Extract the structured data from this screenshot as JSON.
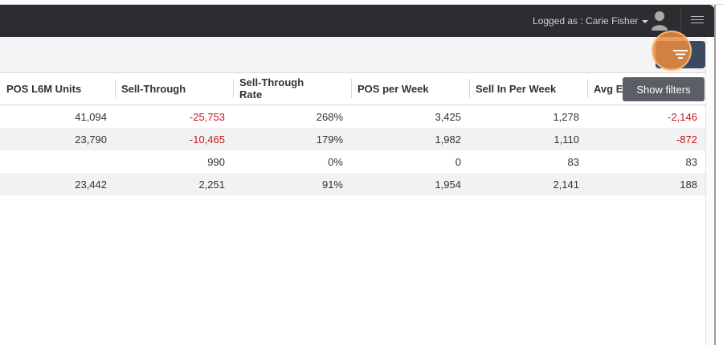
{
  "header": {
    "logged_as": "Logged as : Carie Fisher",
    "user_icon": "user-icon",
    "menu_icon": "hamburger-icon"
  },
  "toolbar": {
    "filter_icon": "filter-icon",
    "tooltip": "Show filters"
  },
  "table": {
    "columns": [
      "POS L6M Units",
      "Sell-Through",
      "Sell-Through Rate",
      "POS per Week",
      "Sell In Per Week",
      "Avg E"
    ],
    "rows": [
      {
        "pos_l6m": "41,094",
        "sell_through": "-25,753",
        "rate": "268%",
        "pos_week": "3,425",
        "sell_in_week": "1,278",
        "avg": "-2,146"
      },
      {
        "pos_l6m": "23,790",
        "sell_through": "-10,465",
        "rate": "179%",
        "pos_week": "1,982",
        "sell_in_week": "1,110",
        "avg": "-872"
      },
      {
        "pos_l6m": "",
        "sell_through": "990",
        "rate": "0%",
        "pos_week": "0",
        "sell_in_week": "83",
        "avg": "83"
      },
      {
        "pos_l6m": "23,442",
        "sell_through": "2,251",
        "rate": "91%",
        "pos_week": "1,954",
        "sell_in_week": "2,141",
        "avg": "188"
      }
    ]
  },
  "colors": {
    "negative": "#c8161d",
    "header_bg": "#2b2d30",
    "filter_button": "#3b4a61"
  }
}
